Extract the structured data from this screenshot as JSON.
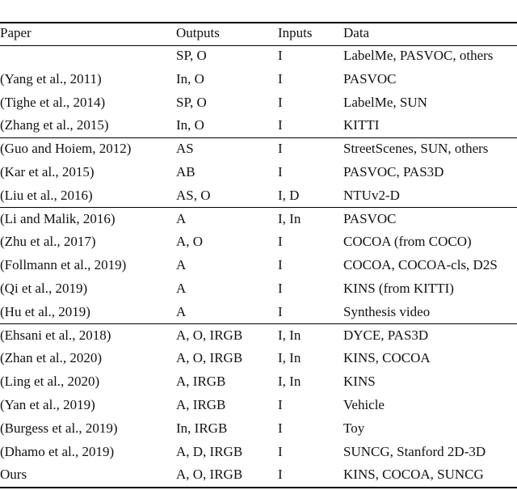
{
  "table": {
    "header": [
      "Paper",
      "Outputs",
      "Inputs",
      "Data"
    ],
    "groups": [
      [
        [
          null,
          "SP, O",
          "I",
          "LabelMe, PASVOC, others"
        ],
        [
          "(Yang et al., 2011)",
          "In, O",
          "I",
          "PASVOC"
        ],
        [
          "(Tighe et al., 2014)",
          "SP, O",
          "I",
          "LabelMe, SUN"
        ],
        [
          "(Zhang et al., 2015)",
          "In, O",
          "I",
          "KITTI"
        ]
      ],
      [
        [
          "(Guo and Hoiem, 2012)",
          "AS",
          "I",
          "StreetScenes, SUN, others"
        ],
        [
          "(Kar et al., 2015)",
          "AB",
          "I",
          "PASVOC, PAS3D"
        ],
        [
          "(Liu et al., 2016)",
          "AS, O",
          "I, D",
          "NTUv2-D"
        ]
      ],
      [
        [
          "(Li and Malik, 2016)",
          "A",
          "I, In",
          "PASVOC"
        ],
        [
          "(Zhu et al., 2017)",
          "A, O",
          "I",
          "COCOA (from COCO)"
        ],
        [
          "(Follmann et al., 2019)",
          "A",
          "I",
          "COCOA, COCOA-cls, D2S"
        ],
        [
          "(Qi et al., 2019)",
          "A",
          "I",
          "KINS (from KITTI)"
        ],
        [
          "(Hu et al., 2019)",
          "A",
          "I",
          "Synthesis video"
        ]
      ],
      [
        [
          "(Ehsani et al., 2018)",
          "A, O, IRGB",
          "I, In",
          "DYCE, PAS3D"
        ],
        [
          "(Zhan et al., 2020)",
          "A, O, IRGB",
          "I, In",
          "KINS, COCOA"
        ],
        [
          "(Ling et al., 2020)",
          "A, IRGB",
          "I, In",
          "KINS"
        ],
        [
          "(Yan et al., 2019)",
          "A, IRGB",
          "I",
          "Vehicle"
        ],
        [
          "(Burgess et al., 2019)",
          "In, IRGB",
          "I",
          "Toy"
        ],
        [
          "(Dhamo et al., 2019)",
          "A, D, IRGB",
          "I",
          "SUNCG, Stanford 2D-3D"
        ],
        [
          "Ours",
          "A, O, IRGB",
          "I",
          "KINS, COCOA, SUNCG"
        ]
      ]
    ]
  }
}
